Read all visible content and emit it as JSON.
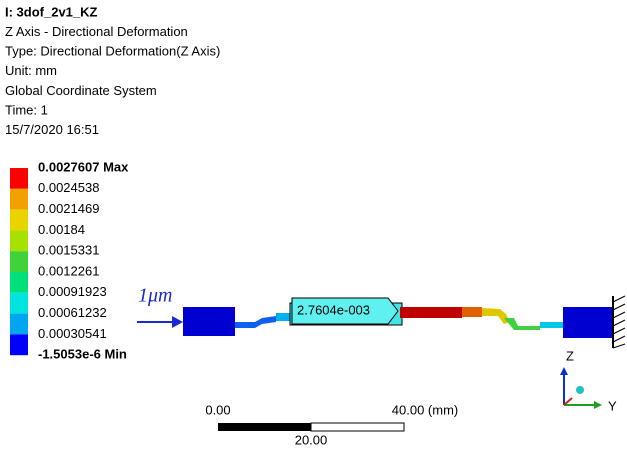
{
  "header": {
    "lines": [
      "I: 3dof_2v1_KZ",
      "Z Axis - Directional Deformation",
      "Type: Directional Deformation(Z Axis)",
      "Unit: mm",
      "Global Coordinate System",
      "Time: 1",
      "15/7/2020 16:51"
    ]
  },
  "legend": {
    "labels": [
      "0.0027607 Max",
      "0.0024538",
      "0.0021469",
      "0.00184",
      "0.0015331",
      "0.0012261",
      "0.00091923",
      "0.00061232",
      "0.00030541",
      "-1.5053e-6 Min"
    ],
    "colors": [
      "#ff0000",
      "#f3a100",
      "#e9d400",
      "#a8e000",
      "#3fd23a",
      "#00e07a",
      "#00e4e0",
      "#00a6f0",
      "#0000ff"
    ]
  },
  "annotation": "1μm",
  "probe": "2.7604e-003",
  "scale_bar": {
    "left": "0.00",
    "right": "40.00 (mm)",
    "middle": "20.00"
  },
  "triad": {
    "z": "Z",
    "y": "Y"
  }
}
